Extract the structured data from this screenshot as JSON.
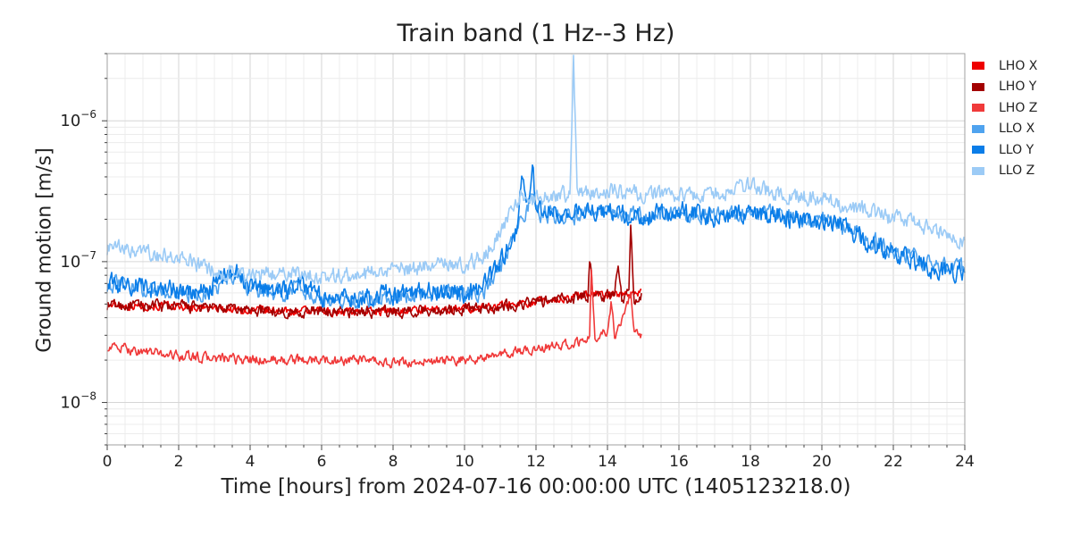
{
  "chart_data": {
    "type": "line",
    "title": "Train band (1 Hz--3 Hz)",
    "xlabel": "Time [hours] from 2024-07-16 00:00:00 UTC (1405123218.0)",
    "ylabel": "Ground motion [m/s]",
    "xlim": [
      0,
      24
    ],
    "ylim": [
      5e-09,
      3e-06
    ],
    "yscale": "log",
    "grid": true,
    "legend_position": "right",
    "x_ticks": [
      "0",
      "2",
      "4",
      "6",
      "8",
      "10",
      "12",
      "14",
      "16",
      "18",
      "20",
      "22",
      "24"
    ],
    "y_ticks": [
      {
        "value": 1e-08,
        "base": "10",
        "exp": "−8"
      },
      {
        "value": 1e-07,
        "base": "10",
        "exp": "−7"
      },
      {
        "value": 1e-06,
        "base": "10",
        "exp": "−6"
      }
    ],
    "series": [
      {
        "name": "LHO X",
        "color": "#ee0000",
        "noise": 0.025,
        "points": [
          [
            0,
            4.9e-08
          ],
          [
            2,
            4.8e-08
          ],
          [
            4,
            4.5e-08
          ],
          [
            6,
            4.4e-08
          ],
          [
            8,
            4.5e-08
          ],
          [
            10,
            4.6e-08
          ],
          [
            11,
            4.9e-08
          ],
          [
            12,
            5.2e-08
          ],
          [
            13,
            5.6e-08
          ],
          [
            13.5,
            6e-08
          ],
          [
            14,
            5.8e-08
          ],
          [
            14.6,
            6e-08
          ],
          [
            14.95,
            6e-08
          ]
        ]
      },
      {
        "name": "LHO Y",
        "color": "#a30000",
        "noise": 0.035,
        "points": [
          [
            0,
            4.9e-08
          ],
          [
            2,
            4.8e-08
          ],
          [
            4,
            4.5e-08
          ],
          [
            6,
            4.4e-08
          ],
          [
            8,
            4.4e-08
          ],
          [
            10,
            4.6e-08
          ],
          [
            11,
            4.8e-08
          ],
          [
            12,
            5.2e-08
          ],
          [
            13,
            5.5e-08
          ],
          [
            13.45,
            5.8e-08
          ],
          [
            13.5,
            1.1e-07
          ],
          [
            13.6,
            5.6e-08
          ],
          [
            14.2,
            5.8e-08
          ],
          [
            14.3,
            1e-07
          ],
          [
            14.4,
            5.5e-08
          ],
          [
            14.6,
            6e-08
          ],
          [
            14.65,
            1.8e-07
          ],
          [
            14.75,
            5.2e-08
          ],
          [
            14.95,
            5.8e-08
          ]
        ]
      },
      {
        "name": "LHO Z",
        "color": "#f03a3a",
        "noise": 0.03,
        "points": [
          [
            0,
            2.5e-08
          ],
          [
            1,
            2.3e-08
          ],
          [
            2,
            2.15e-08
          ],
          [
            3,
            2.05e-08
          ],
          [
            4,
            2e-08
          ],
          [
            5,
            2e-08
          ],
          [
            6,
            2e-08
          ],
          [
            7,
            1.98e-08
          ],
          [
            8,
            1.9e-08
          ],
          [
            9,
            1.95e-08
          ],
          [
            10,
            2e-08
          ],
          [
            11,
            2.15e-08
          ],
          [
            11.5,
            2.3e-08
          ],
          [
            12,
            2.4e-08
          ],
          [
            13,
            2.6e-08
          ],
          [
            13.5,
            2.8e-08
          ],
          [
            13.55,
            9e-08
          ],
          [
            13.65,
            3e-08
          ],
          [
            14,
            3.1e-08
          ],
          [
            14.1,
            5.2e-08
          ],
          [
            14.2,
            3e-08
          ],
          [
            14.4,
            4e-08
          ],
          [
            14.6,
            5.5e-08
          ],
          [
            14.65,
            6e-08
          ],
          [
            14.75,
            3e-08
          ],
          [
            14.95,
            2.9e-08
          ]
        ]
      },
      {
        "name": "LLO X",
        "color": "#4fa3ef",
        "noise": 0.05,
        "points": [
          [
            0,
            7e-08
          ],
          [
            1,
            6.5e-08
          ],
          [
            2,
            6e-08
          ],
          [
            2.5,
            5.6e-08
          ],
          [
            3,
            6.5e-08
          ],
          [
            3.6,
            8e-08
          ],
          [
            4,
            6.3e-08
          ],
          [
            5,
            6e-08
          ],
          [
            5.3,
            7e-08
          ],
          [
            6,
            5.2e-08
          ],
          [
            7,
            5.5e-08
          ],
          [
            8,
            5.6e-08
          ],
          [
            9,
            6e-08
          ],
          [
            10,
            5.8e-08
          ],
          [
            10.5,
            6e-08
          ],
          [
            11,
            9e-08
          ],
          [
            11.5,
            1.7e-07
          ],
          [
            11.9,
            3e-07
          ],
          [
            12,
            2.2e-07
          ],
          [
            13,
            2.1e-07
          ],
          [
            14,
            2.2e-07
          ],
          [
            15,
            2.1e-07
          ],
          [
            16,
            2.2e-07
          ],
          [
            17,
            2.1e-07
          ],
          [
            18,
            2.3e-07
          ],
          [
            19,
            2.1e-07
          ],
          [
            20,
            2.05e-07
          ],
          [
            21,
            1.6e-07
          ],
          [
            22,
            1.2e-07
          ],
          [
            23,
            9.5e-08
          ],
          [
            24,
            9e-08
          ]
        ]
      },
      {
        "name": "LLO Y",
        "color": "#0a7de8",
        "noise": 0.06,
        "points": [
          [
            0,
            7e-08
          ],
          [
            1,
            6.7e-08
          ],
          [
            2,
            6.2e-08
          ],
          [
            2.5,
            5.7e-08
          ],
          [
            3,
            6.8e-08
          ],
          [
            3.6,
            9e-08
          ],
          [
            4,
            6.5e-08
          ],
          [
            5,
            6.3e-08
          ],
          [
            5.4,
            7.5e-08
          ],
          [
            6,
            5.4e-08
          ],
          [
            7,
            5.6e-08
          ],
          [
            8,
            5.8e-08
          ],
          [
            9,
            6.2e-08
          ],
          [
            10,
            6e-08
          ],
          [
            10.5,
            6.5e-08
          ],
          [
            11,
            1e-07
          ],
          [
            11.5,
            1.8e-07
          ],
          [
            11.6,
            4e-07
          ],
          [
            11.8,
            2.5e-07
          ],
          [
            11.9,
            5.5e-07
          ],
          [
            12,
            2.3e-07
          ],
          [
            13,
            2.2e-07
          ],
          [
            14,
            2.3e-07
          ],
          [
            15,
            2.1e-07
          ],
          [
            16,
            2.3e-07
          ],
          [
            17,
            2.1e-07
          ],
          [
            18,
            2.2e-07
          ],
          [
            19,
            2.05e-07
          ],
          [
            20,
            2e-07
          ],
          [
            21,
            1.5e-07
          ],
          [
            22,
            1.15e-07
          ],
          [
            23,
            9e-08
          ],
          [
            24,
            8.5e-08
          ]
        ]
      },
      {
        "name": "LLO Z",
        "color": "#9ccbf6",
        "noise": 0.05,
        "points": [
          [
            0,
            1.25e-07
          ],
          [
            1,
            1.15e-07
          ],
          [
            2,
            1.05e-07
          ],
          [
            3,
            8.5e-08
          ],
          [
            4,
            8e-08
          ],
          [
            5,
            8.5e-08
          ],
          [
            6,
            8e-08
          ],
          [
            7,
            8e-08
          ],
          [
            8,
            8.5e-08
          ],
          [
            9,
            9.5e-08
          ],
          [
            10,
            9.5e-08
          ],
          [
            10.5,
            1.1e-07
          ],
          [
            11,
            1.6e-07
          ],
          [
            11.5,
            2.8e-07
          ],
          [
            12,
            2.7e-07
          ],
          [
            12.5,
            3e-07
          ],
          [
            12.95,
            3e-07
          ],
          [
            13.05,
            3e-06
          ],
          [
            13.15,
            3e-07
          ],
          [
            14,
            3.2e-07
          ],
          [
            15,
            3e-07
          ],
          [
            16,
            2.9e-07
          ],
          [
            17,
            3e-07
          ],
          [
            18,
            3.4e-07
          ],
          [
            19,
            3e-07
          ],
          [
            20,
            2.8e-07
          ],
          [
            21,
            2.4e-07
          ],
          [
            22,
            2e-07
          ],
          [
            23,
            1.75e-07
          ],
          [
            24,
            1.35e-07
          ]
        ]
      }
    ]
  }
}
